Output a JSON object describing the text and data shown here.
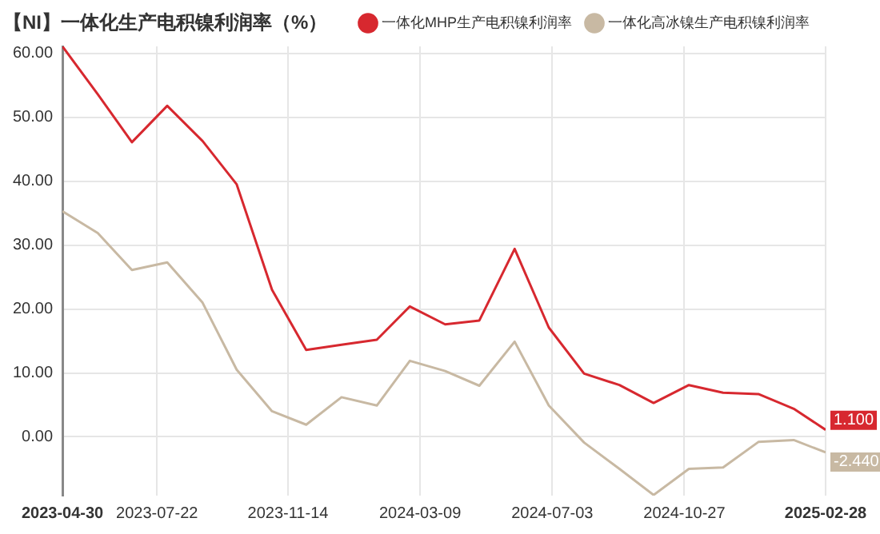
{
  "chart_data": {
    "type": "line",
    "title": "【NI】一体化生产电积镍利润率（%）",
    "x": [
      "2023-04-30",
      "2023-05-31",
      "2023-06-30",
      "2023-07-31",
      "2023-08-31",
      "2023-09-30",
      "2023-10-31",
      "2023-11-30",
      "2023-12-31",
      "2024-01-31",
      "2024-02-29",
      "2024-03-31",
      "2024-04-30",
      "2024-05-31",
      "2024-06-30",
      "2024-07-31",
      "2024-08-31",
      "2024-09-30",
      "2024-10-31",
      "2024-11-30",
      "2024-12-31",
      "2025-01-31",
      "2025-02-28"
    ],
    "series": [
      {
        "name": "一体化MHP生产电积镍利润率",
        "color": "#d7282f",
        "values": [
          61.1,
          53.6,
          46.1,
          51.8,
          46.3,
          39.5,
          23.0,
          13.6,
          14.4,
          15.2,
          20.4,
          17.6,
          18.2,
          29.4,
          17.1,
          9.9,
          8.1,
          5.3,
          8.1,
          6.9,
          6.7,
          4.4,
          1.1
        ],
        "value_labels": [
          null,
          null,
          null,
          null,
          null,
          null,
          null,
          null,
          null,
          null,
          null,
          null,
          null,
          null,
          null,
          null,
          null,
          null,
          null,
          null,
          null,
          null,
          "1.100"
        ]
      },
      {
        "name": "一体化高冰镍生产电积镍利润率",
        "color": "#c8b9a3",
        "values": [
          35.3,
          31.9,
          26.1,
          27.3,
          21.0,
          10.5,
          4.0,
          1.9,
          6.2,
          4.9,
          11.9,
          10.3,
          8.0,
          14.9,
          4.9,
          -0.9,
          -5.0,
          -9.1,
          -5.0,
          -4.8,
          -0.8,
          -0.5,
          -2.44
        ],
        "value_labels": [
          null,
          null,
          null,
          null,
          null,
          null,
          null,
          null,
          null,
          null,
          null,
          null,
          null,
          null,
          null,
          null,
          null,
          null,
          null,
          null,
          null,
          null,
          "-2.440"
        ]
      }
    ],
    "xlim": [
      "2023-04-30",
      "2025-02-28"
    ],
    "xticks": [
      "2023-04-30",
      "2023-07-22",
      "2023-11-14",
      "2024-03-09",
      "2024-07-03",
      "2024-10-27",
      "2025-02-28"
    ],
    "ylim": [
      -9.2,
      61.1
    ],
    "yticks": [
      {
        "value": 0,
        "label": "0.00"
      },
      {
        "value": 10,
        "label": "10.00"
      },
      {
        "value": 20,
        "label": "20.00"
      },
      {
        "value": 30,
        "label": "30.00"
      },
      {
        "value": 40,
        "label": "40.00"
      },
      {
        "value": 50,
        "label": "50.00"
      },
      {
        "value": 60,
        "label": "60.00"
      }
    ],
    "grid": true,
    "legend": "top right",
    "marker": "none",
    "line_style": "solid"
  }
}
